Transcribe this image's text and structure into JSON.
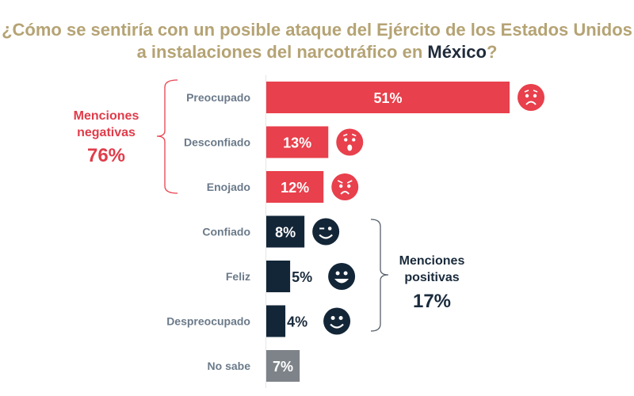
{
  "title": {
    "line1": "¿Cómo se sentiría con un posible ataque del Ejército de los Estados Unidos",
    "line2_prefix": "a instalaciones del narcotráfico en ",
    "line2_highlight": "México",
    "line2_suffix": "?"
  },
  "colors": {
    "negative": "#e8404c",
    "positive": "#132638",
    "neutral": "#7e8389",
    "title": "#b5a374",
    "label": "#6b7a8a"
  },
  "chart_data": {
    "type": "bar",
    "orientation": "horizontal",
    "title": "¿Cómo se sentiría con un posible ataque del Ejército de los Estados Unidos a instalaciones del narcotráfico en México?",
    "categories": [
      "Preocupado",
      "Desconfiado",
      "Enojado",
      "Confiado",
      "Feliz",
      "Despreocupado",
      "No sabe"
    ],
    "values": [
      51,
      13,
      12,
      8,
      5,
      4,
      7
    ],
    "labels": [
      "51%",
      "13%",
      "12%",
      "8%",
      "5%",
      "4%",
      "7%"
    ],
    "groups": [
      "negative",
      "negative",
      "negative",
      "positive",
      "positive",
      "positive",
      "neutral"
    ],
    "icons": [
      "worried-face-icon",
      "surprised-face-icon",
      "angry-face-icon",
      "winking-face-icon",
      "grinning-face-icon",
      "smiling-face-icon",
      null
    ],
    "xlim": [
      0,
      51
    ],
    "unit": "%",
    "annotations": [
      {
        "group": "negative",
        "line1": "Menciones",
        "line2": "negativas",
        "total": "76%"
      },
      {
        "group": "positive",
        "line1": "Menciones",
        "line2": "positivas",
        "total": "17%"
      }
    ]
  }
}
